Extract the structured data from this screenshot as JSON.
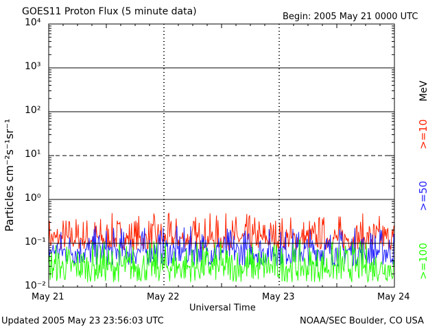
{
  "header": {
    "title": "GOES11 Proton Flux (5 minute data)",
    "begin": "Begin: 2005 May 21 0000 UTC"
  },
  "footer": {
    "updated": "Updated 2005 May 23 23:56:03 UTC",
    "credit": "NOAA/SEC Boulder, CO USA"
  },
  "legend": {
    "unit": "MeV",
    "items": [
      {
        "label": ">=10",
        "color": "#ff2200"
      },
      {
        "label": ">=50",
        "color": "#2222ff"
      },
      {
        "label": ">=100",
        "color": "#22ff00"
      }
    ]
  },
  "chart_data": {
    "type": "line",
    "title": "GOES11 Proton Flux (5 minute data)",
    "xlabel": "Universal Time",
    "ylabel": "Particles cm⁻²s⁻¹sr⁻¹",
    "yscale": "log",
    "ylim": [
      0.01,
      10000
    ],
    "yticks": [
      "10⁻²",
      "10⁻¹",
      "10⁰",
      "10¹",
      "10²",
      "10³",
      "10⁴"
    ],
    "xticks": [
      "May 21",
      "May 22",
      "May 23",
      "May 24"
    ],
    "x_range_days": [
      0,
      3
    ],
    "reference_lines": [
      {
        "value": 10,
        "style": "dashed"
      },
      {
        "value": 100,
        "style": "solid"
      },
      {
        "value": 1000,
        "style": "solid"
      },
      {
        "value": 1,
        "style": "solid"
      },
      {
        "value": 0.1,
        "style": "solid"
      }
    ],
    "day_boundary_markers": [
      "May 22",
      "May 23"
    ],
    "grid": false,
    "legend_position": "right",
    "series": [
      {
        "name": ">=10 MeV",
        "color": "#ff2200",
        "typical": 0.13,
        "low": 0.07,
        "high": 0.5
      },
      {
        "name": ">=50 MeV",
        "color": "#2222ff",
        "typical": 0.07,
        "low": 0.03,
        "high": 0.25
      },
      {
        "name": ">=100 MeV",
        "color": "#22ff00",
        "typical": 0.03,
        "low": 0.013,
        "high": 0.12
      }
    ]
  }
}
